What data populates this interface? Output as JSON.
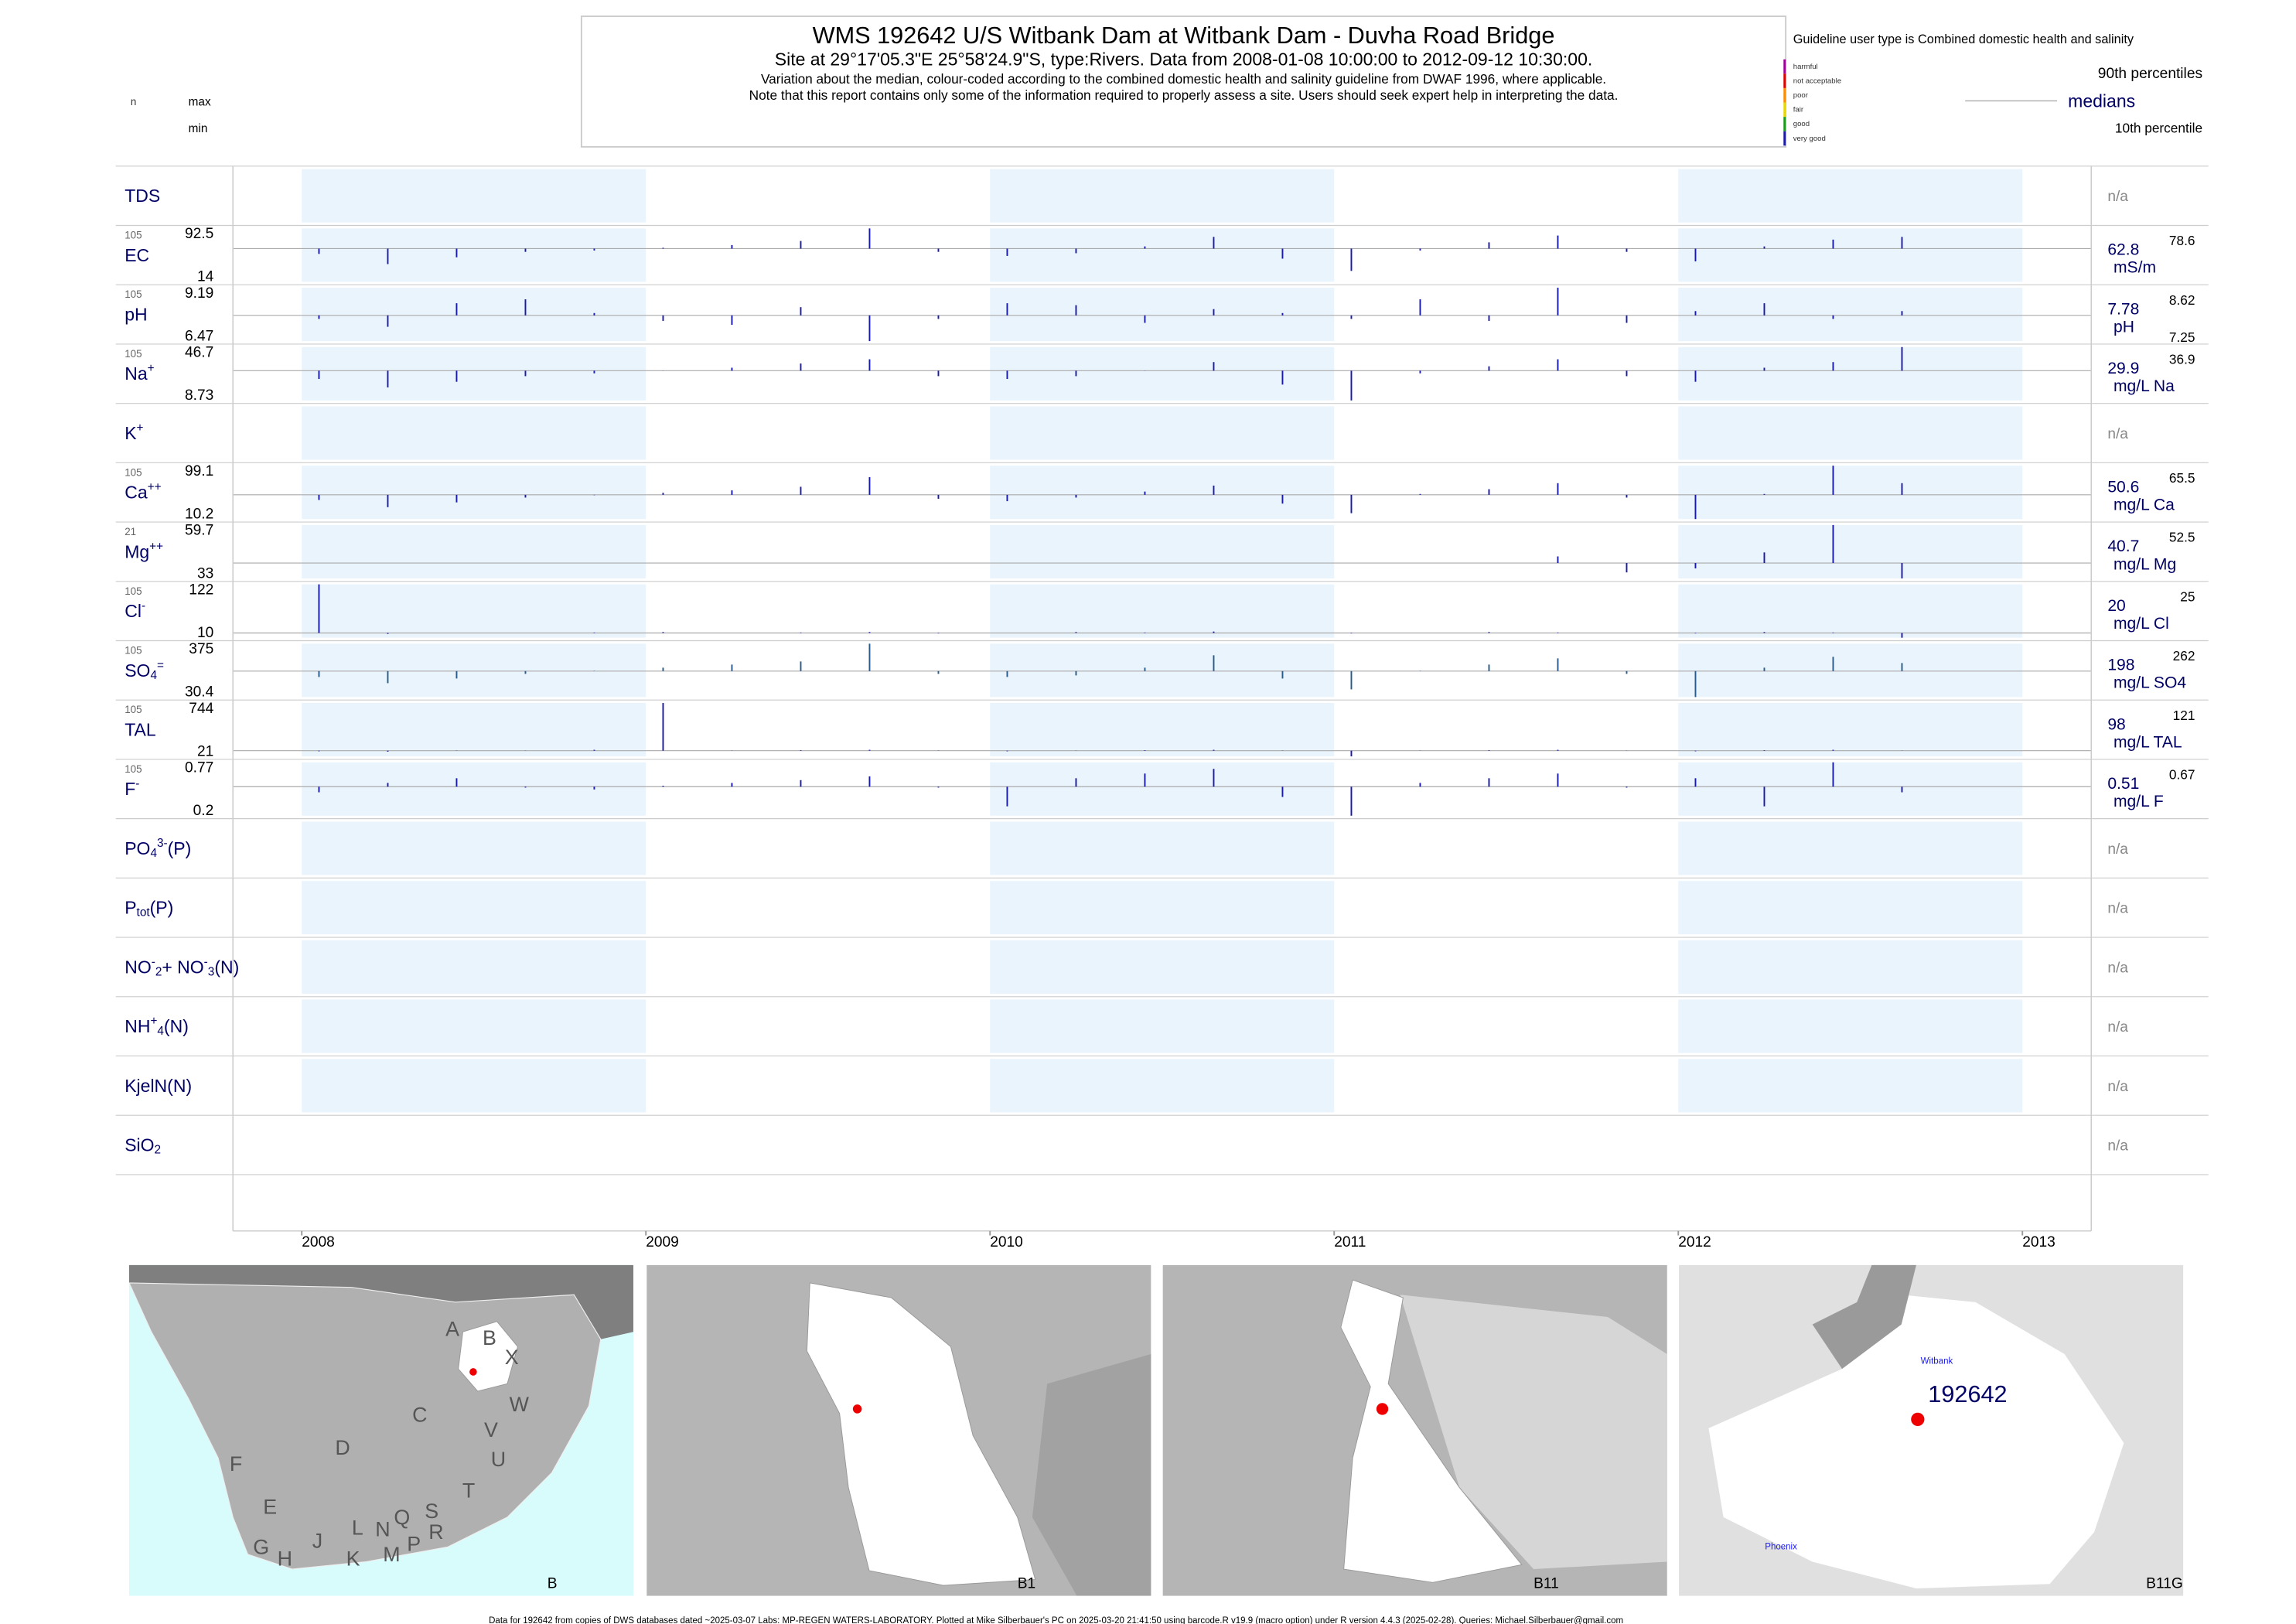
{
  "header": {
    "title": "WMS 192642  U/S Witbank Dam at Witbank Dam - Duvha Road Bridge",
    "site": "Site at 29°17'05.3\"E 25°58'24.9\"S, type:Rivers.  Data from 2008-01-08 10:00:00 to 2012-09-12 10:30:00.",
    "note1": "Variation about the median,  colour-coded according to the combined domestic health and salinity guideline from DWAF 1996, where applicable.",
    "note2": "Note that this report contains only some of the information required to properly assess a site. Users should seek expert help in interpreting the data."
  },
  "legend": {
    "guideline": "Guideline user type is Combined domestic health and salinity",
    "items": [
      {
        "label": "harmful",
        "color": "#a0009a"
      },
      {
        "label": "not acceptable",
        "color": "#e00000"
      },
      {
        "label": "poor",
        "color": "#ff8c00"
      },
      {
        "label": "fair",
        "color": "#e8d800"
      },
      {
        "label": "good",
        "color": "#1a9a1a"
      },
      {
        "label": "very good",
        "color": "#1a1aa8"
      }
    ],
    "p90": "90th percentiles",
    "median": "medians",
    "p10": "10th percentile"
  },
  "left_heads": {
    "n": "n",
    "max": "max",
    "min": "min"
  },
  "chart_data": {
    "type": "strip",
    "x": [
      2008.05,
      2008.25,
      2008.45,
      2008.65,
      2008.85,
      2009.05,
      2009.25,
      2009.45,
      2009.65,
      2009.85,
      2010.05,
      2010.25,
      2010.45,
      2010.65,
      2010.85,
      2011.05,
      2011.25,
      2011.45,
      2011.65,
      2011.85,
      2012.05,
      2012.25,
      2012.45,
      2012.65
    ],
    "xlim": [
      2007.8,
      2013.2
    ],
    "xticks": [
      2008,
      2009,
      2010,
      2011,
      2012,
      2013
    ],
    "shaded_years": [
      2008,
      2010,
      2012
    ],
    "rows": [
      {
        "label": [
          {
            "text": "TDS"
          }
        ],
        "note": "n/a"
      },
      {
        "label": [
          {
            "text": "EC"
          }
        ],
        "n": 105,
        "max": 92.5,
        "min": 14,
        "median": 62.8,
        "p90": 78.6,
        "unit": "mS/m",
        "color": "#1a1aa8",
        "values": [
          55,
          40,
          50,
          58,
          60,
          64,
          68,
          74,
          92.5,
          58,
          52,
          56,
          66,
          80,
          48,
          30,
          60,
          72,
          82,
          58,
          44,
          66,
          76,
          80
        ]
      },
      {
        "label": [
          {
            "text": "pH"
          }
        ],
        "n": 105,
        "max": 9.19,
        "min": 6.47,
        "median": 7.78,
        "p90": 8.62,
        "p10": 7.25,
        "unit": "pH",
        "color": "#1a1aa8",
        "values": [
          7.6,
          7.2,
          8.4,
          8.6,
          7.9,
          7.5,
          7.3,
          8.2,
          6.47,
          7.6,
          8.4,
          8.3,
          7.4,
          8.1,
          7.9,
          7.6,
          8.6,
          7.5,
          9.19,
          7.4,
          8.0,
          8.4,
          7.6,
          8.0
        ]
      },
      {
        "label": [
          {
            "text": "Na"
          },
          {
            "text": "+",
            "pos": "sup"
          }
        ],
        "n": 105,
        "max": 46.7,
        "min": 8.73,
        "median": 29.9,
        "p90": 36.9,
        "unit": "mg/L Na",
        "color": "#1a1aa8",
        "values": [
          24,
          18,
          22,
          26,
          28,
          30,
          32,
          35,
          38,
          26,
          24,
          26,
          30,
          36,
          20,
          8.73,
          28,
          33,
          38,
          26,
          22,
          32,
          36,
          46.7
        ]
      },
      {
        "label": [
          {
            "text": "K"
          },
          {
            "text": "+",
            "pos": "sup"
          }
        ],
        "note": "n/a"
      },
      {
        "label": [
          {
            "text": "Ca"
          },
          {
            "text": "++",
            "pos": "sup"
          }
        ],
        "n": 105,
        "max": 99.1,
        "min": 10.2,
        "median": 50.6,
        "p90": 65.5,
        "unit": "mg/L Ca",
        "color": "#1a1aa8",
        "values": [
          42,
          30,
          38,
          46,
          50,
          54,
          58,
          64,
          80,
          44,
          40,
          46,
          56,
          66,
          36,
          20,
          52,
          60,
          70,
          46,
          10.2,
          52,
          99.1,
          70
        ]
      },
      {
        "label": [
          {
            "text": "Mg"
          },
          {
            "text": "++",
            "pos": "sup"
          }
        ],
        "n": 21,
        "max": 59.7,
        "min": 33,
        "median": 40.7,
        "p90": 52.5,
        "unit": "mg/L Mg",
        "color": "#1a1aa8",
        "values": [
          null,
          null,
          null,
          null,
          null,
          null,
          null,
          null,
          null,
          null,
          null,
          null,
          null,
          null,
          null,
          null,
          null,
          null,
          44,
          36,
          38,
          46,
          59.7,
          33
        ]
      },
      {
        "label": [
          {
            "text": "Cl"
          },
          {
            "text": "-",
            "pos": "sup"
          }
        ],
        "n": 105,
        "max": 122,
        "min": 10,
        "median": 20,
        "p90": 25,
        "unit": "mg/L Cl",
        "color": "#1a1aa8",
        "values": [
          122,
          18,
          20,
          20,
          21,
          22,
          20,
          21,
          22,
          19,
          20,
          22,
          21,
          23,
          20,
          19,
          20,
          22,
          21,
          20,
          19,
          22,
          21,
          10
        ]
      },
      {
        "label": [
          {
            "text": "SO"
          },
          {
            "text": "4",
            "pos": "sub"
          },
          {
            "text": "=",
            "pos": "sup"
          }
        ],
        "n": 105,
        "max": 375,
        "min": 30.4,
        "median": 198,
        "p90": 262,
        "unit": "mg/L SO4",
        "color": "#2a5a8a",
        "values": [
          160,
          120,
          150,
          180,
          200,
          220,
          240,
          260,
          375,
          180,
          160,
          170,
          220,
          300,
          150,
          80,
          200,
          240,
          280,
          180,
          30.4,
          220,
          290,
          250
        ]
      },
      {
        "label": [
          {
            "text": "TAL"
          }
        ],
        "n": 105,
        "max": 744,
        "min": 21,
        "median": 98,
        "p90": 121,
        "unit": "mg/L TAL",
        "color": "#1a1aa8",
        "values": [
          90,
          85,
          95,
          100,
          110,
          744,
          100,
          105,
          110,
          95,
          90,
          100,
          105,
          110,
          95,
          21,
          100,
          105,
          110,
          100,
          90,
          105,
          110,
          100
        ]
      },
      {
        "label": [
          {
            "text": "F"
          },
          {
            "text": "-",
            "pos": "sup"
          }
        ],
        "n": 105,
        "max": 0.77,
        "min": 0.2,
        "median": 0.51,
        "p90": 0.67,
        "unit": "mg/L F",
        "color": "#1a1aa8",
        "values": [
          0.45,
          0.55,
          0.6,
          0.5,
          0.48,
          0.52,
          0.55,
          0.58,
          0.62,
          0.5,
          0.3,
          0.6,
          0.65,
          0.7,
          0.4,
          0.2,
          0.55,
          0.6,
          0.65,
          0.5,
          0.6,
          0.3,
          0.77,
          0.45
        ]
      },
      {
        "label": [
          {
            "text": "PO"
          },
          {
            "text": "4",
            "pos": "sub"
          },
          {
            "text": "3-",
            "pos": "sup"
          },
          {
            "text": "(P)"
          }
        ],
        "note": "n/a"
      },
      {
        "label": [
          {
            "text": "P"
          },
          {
            "text": "tot",
            "pos": "sub"
          },
          {
            "text": "(P)"
          }
        ],
        "note": "n/a"
      },
      {
        "label": [
          {
            "text": "NO"
          },
          {
            "text": "-",
            "pos": "sup"
          },
          {
            "text": "2",
            "pos": "sub"
          },
          {
            "text": "+ NO"
          },
          {
            "text": "-",
            "pos": "sup"
          },
          {
            "text": "3",
            "pos": "sub"
          },
          {
            "text": "(N)"
          }
        ],
        "note": "n/a"
      },
      {
        "label": [
          {
            "text": "NH"
          },
          {
            "text": "+",
            "pos": "sup"
          },
          {
            "text": "4",
            "pos": "sub"
          },
          {
            "text": "(N)"
          }
        ],
        "note": "n/a"
      },
      {
        "label": [
          {
            "text": "KjelN(N)"
          }
        ],
        "note": "n/a"
      },
      {
        "label": [
          {
            "text": "SiO"
          },
          {
            "text": "2",
            "pos": "sub"
          }
        ],
        "note": "n/a",
        "shaded": false
      }
    ]
  },
  "maps": [
    {
      "name": "B",
      "labels": [
        "A",
        "B",
        "X",
        "C",
        "W",
        "D",
        "V",
        "U",
        "T",
        "F",
        "E",
        "G",
        "H",
        "J",
        "K",
        "L",
        "N",
        "M",
        "Q",
        "P",
        "S",
        "R"
      ]
    },
    {
      "name": "B1",
      "labels": []
    },
    {
      "name": "B11",
      "labels": []
    },
    {
      "name": "B11G",
      "labels": [
        "Witbank",
        "192642",
        "Phoenix"
      ]
    }
  ],
  "footer": "Data for 192642 from copies of DWS databases dated ~2025-03-07 Labs: MP-REGEN WATERS-LABORATORY. Plotted at Mike Silberbauer's PC on 2025-03-20 21:41:50 using barcode.R v19.9 (macro option) under R version 4.4.3 (2025-02-28). Queries: Michael.Silberbauer@gmail.com"
}
